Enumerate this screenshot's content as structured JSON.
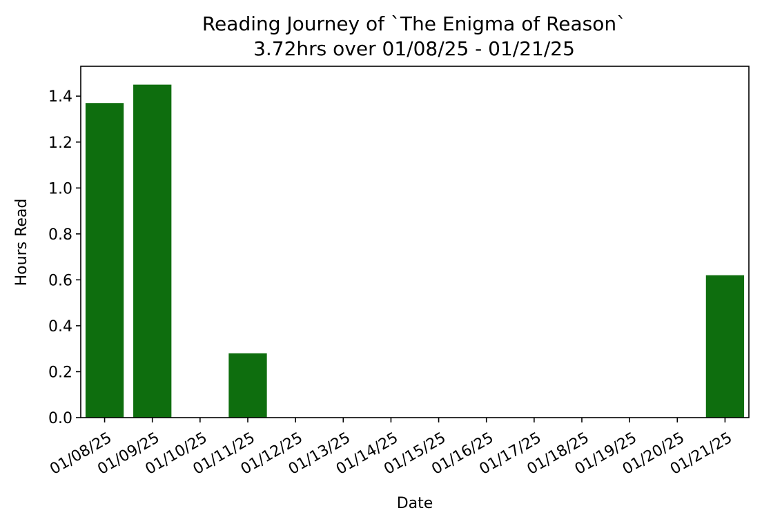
{
  "chart_data": {
    "type": "bar",
    "title": "Reading Journey of `The Enigma of Reason`",
    "subtitle": "3.72hrs over 01/08/25 - 01/21/25",
    "xlabel": "Date",
    "ylabel": "Hours Read",
    "categories": [
      "01/08/25",
      "01/09/25",
      "01/10/25",
      "01/11/25",
      "01/12/25",
      "01/13/25",
      "01/14/25",
      "01/15/25",
      "01/16/25",
      "01/17/25",
      "01/18/25",
      "01/19/25",
      "01/20/25",
      "01/21/25"
    ],
    "values": [
      1.37,
      1.45,
      0,
      0.28,
      0,
      0,
      0,
      0,
      0,
      0,
      0,
      0,
      0,
      0.62
    ],
    "ylim": [
      0,
      1.53
    ],
    "yticks": [
      0.0,
      0.2,
      0.4,
      0.6,
      0.8,
      1.0,
      1.2,
      1.4
    ],
    "ytick_labels": [
      "0.0",
      "0.2",
      "0.4",
      "0.6",
      "0.8",
      "1.0",
      "1.2",
      "1.4"
    ],
    "bar_color": "#0e6e0e",
    "grid": false,
    "legend": false
  }
}
